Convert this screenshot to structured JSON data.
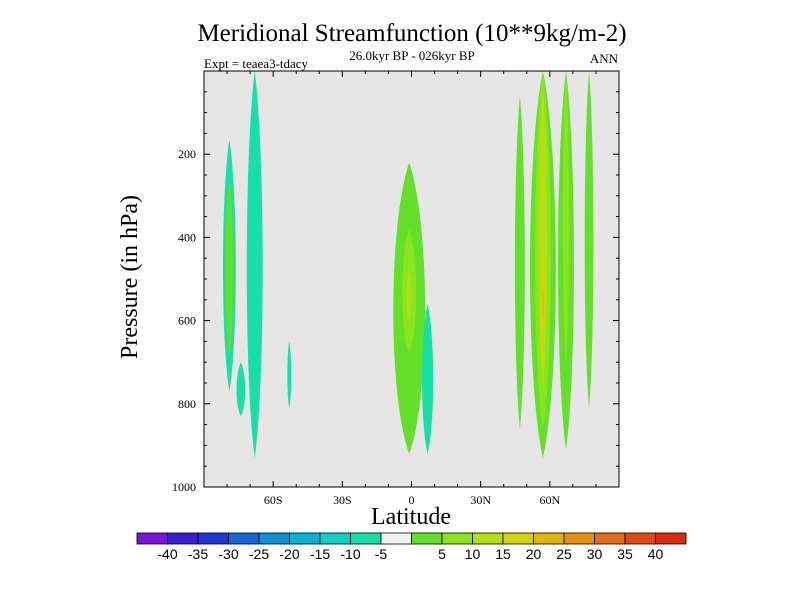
{
  "chart_data": {
    "type": "contour",
    "title": "Meridional Streamfunction (10**9kg/m-2)",
    "subtitle": "26.0kyr BP - 026kyr BP",
    "left_label": "Expt = teaea3-tdacy",
    "right_label": "ANN",
    "xlabel": "Latitude",
    "ylabel": "Pressure (in hPa)",
    "xlim": [
      -90,
      90
    ],
    "ylim": [
      1000,
      0
    ],
    "x_ticks": [
      {
        "value": -60,
        "label": "60S"
      },
      {
        "value": -30,
        "label": "30S"
      },
      {
        "value": 0,
        "label": "0"
      },
      {
        "value": 30,
        "label": "30N"
      },
      {
        "value": 60,
        "label": "60N"
      }
    ],
    "y_ticks": [
      {
        "value": 200,
        "label": "200"
      },
      {
        "value": 400,
        "label": "400"
      },
      {
        "value": 600,
        "label": "600"
      },
      {
        "value": 800,
        "label": "800"
      },
      {
        "value": 1000,
        "label": "1000"
      }
    ],
    "missing_color": "#e6e6e6",
    "colorbar": {
      "colors": [
        "#7a12d8",
        "#3a1ed0",
        "#2036d4",
        "#1a64da",
        "#1190d6",
        "#0cb4d4",
        "#12cfc6",
        "#16e0a6",
        "#f2f2f2",
        "#62e02a",
        "#8ce41e",
        "#b2e014",
        "#d2d410",
        "#e0b60e",
        "#e49210",
        "#e46c12",
        "#e04a12",
        "#dc2a0e"
      ],
      "labels": [
        "-40",
        "-35",
        "-30",
        "-25",
        "-20",
        "-15",
        "-10",
        "-5",
        "5",
        "10",
        "15",
        "20",
        "25",
        "30",
        "35",
        "40"
      ]
    },
    "shapes": [
      {
        "level": -5,
        "color": "#16e0a6",
        "lat_center": -79,
        "p_top": 165,
        "p_bot": 770,
        "half_width": 3.2
      },
      {
        "level": 5,
        "color": "#62e02a",
        "lat_center": -79,
        "p_top": 260,
        "p_bot": 690,
        "half_width": 2.0
      },
      {
        "level": -5,
        "color": "#16e0a6",
        "lat_center": -74,
        "p_top": 700,
        "p_bot": 830,
        "half_width": 2.2
      },
      {
        "level": -5,
        "color": "#16e0a6",
        "lat_center": -68,
        "p_top": 0,
        "p_bot": 930,
        "half_width": 4.0
      },
      {
        "level": -5,
        "color": "#16e0a6",
        "lat_center": -53,
        "p_top": 650,
        "p_bot": 810,
        "half_width": 1.0
      },
      {
        "level": 5,
        "color": "#62e02a",
        "lat_center": -1,
        "p_top": 220,
        "p_bot": 920,
        "half_width": 8.0
      },
      {
        "level": 10,
        "color": "#8ce41e",
        "lat_center": -1,
        "p_top": 380,
        "p_bot": 680,
        "half_width": 3.5
      },
      {
        "level": 15,
        "color": "#b2e014",
        "lat_center": -1,
        "p_top": 480,
        "p_bot": 600,
        "half_width": 1.3
      },
      {
        "level": -5,
        "color": "#16e0a6",
        "lat_center": 7,
        "p_top": 560,
        "p_bot": 920,
        "half_width": 2.8
      },
      {
        "level": 5,
        "color": "#62e02a",
        "lat_center": 47,
        "p_top": 60,
        "p_bot": 860,
        "half_width": 2.5
      },
      {
        "level": 5,
        "color": "#62e02a",
        "lat_center": 57,
        "p_top": 0,
        "p_bot": 930,
        "half_width": 6.5
      },
      {
        "level": 10,
        "color": "#8ce41e",
        "lat_center": 57,
        "p_top": 0,
        "p_bot": 860,
        "half_width": 4.0
      },
      {
        "level": 15,
        "color": "#b2e014",
        "lat_center": 57,
        "p_top": 40,
        "p_bot": 760,
        "half_width": 2.3
      },
      {
        "level": 20,
        "color": "#d2d410",
        "lat_center": 57,
        "p_top": 420,
        "p_bot": 700,
        "half_width": 1.0
      },
      {
        "level": 25,
        "color": "#e0b60e",
        "lat_center": 57,
        "p_top": 520,
        "p_bot": 600,
        "half_width": 0.4
      },
      {
        "level": 5,
        "color": "#62e02a",
        "lat_center": 67,
        "p_top": 0,
        "p_bot": 910,
        "half_width": 4.0
      },
      {
        "level": 10,
        "color": "#8ce41e",
        "lat_center": 67,
        "p_top": 0,
        "p_bot": 700,
        "half_width": 1.6
      },
      {
        "level": 5,
        "color": "#62e02a",
        "lat_center": 77,
        "p_top": 0,
        "p_bot": 810,
        "half_width": 2.2
      }
    ]
  }
}
